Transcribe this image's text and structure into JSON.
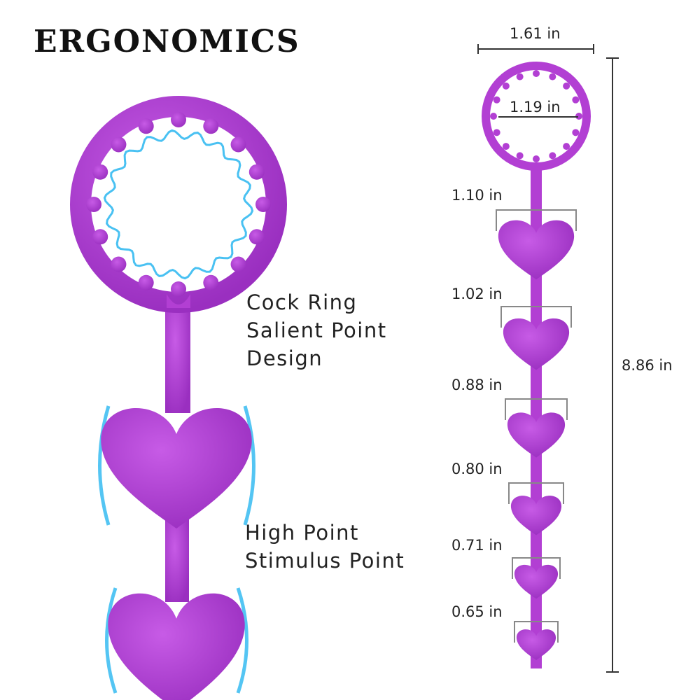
{
  "title": "ERGONOMICS",
  "colors": {
    "product": "#b23fd3",
    "highlight": "#29b6f0",
    "dimension_line": "#333333",
    "bracket": "#888888"
  },
  "features": {
    "ring": [
      "Cock Ring",
      "Salient Point",
      "Design"
    ],
    "beads": [
      "High Point",
      "Stimulus Point"
    ]
  },
  "dimensions": {
    "ring_outer": "1.61 in",
    "ring_inner": "1.19 in",
    "total_length": "8.86 in",
    "beads": [
      "1.10 in",
      "1.02 in",
      "0.88 in",
      "0.80 in",
      "0.71 in",
      "0.65 in"
    ]
  }
}
